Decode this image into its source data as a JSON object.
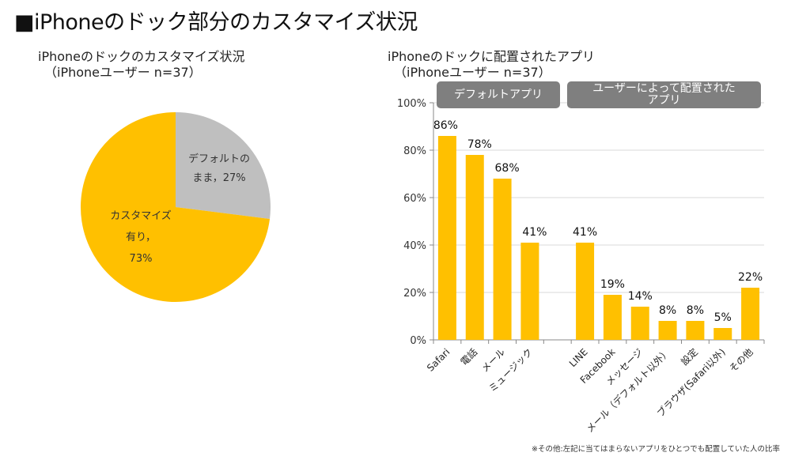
{
  "page": {
    "title": "■iPhoneのドック部分のカスタマイズ状況",
    "footnote": "※その他:左記に当てはまらないアプリをひとつでも配置していた人の比率"
  },
  "colors": {
    "customized": "#ffc000",
    "default": "#bfbfbf",
    "bar": "#ffc000",
    "group_box": "#7f7f7f",
    "gridline": "#d9d9d9"
  },
  "chart_data": [
    {
      "type": "pie",
      "title": "iPhoneのドックのカスタマイズ状況",
      "subtitle": "（iPhoneユーザー n=37）",
      "slices": [
        {
          "label": "デフォルトのまま",
          "value": 27,
          "display": [
            "デフォルトの",
            "まま，27%"
          ],
          "color": "#bfbfbf"
        },
        {
          "label": "カスタマイズ有り",
          "value": 73,
          "display": [
            "カスタマイズ",
            "有り，",
            "73%"
          ],
          "color": "#ffc000"
        }
      ],
      "unit": "%",
      "start": "12 o'clock, clockwise"
    },
    {
      "type": "bar",
      "title": "iPhoneのドックに配置されたアプリ",
      "subtitle": "（iPhoneユーザー n=37）",
      "groups": [
        {
          "label": "デフォルトアプリ",
          "categories": [
            "Safari",
            "電話",
            "メール",
            "ミュージック"
          ]
        },
        {
          "label": "ユーザーによって配置されたアプリ",
          "label_lines": [
            "ユーザーによって配置された",
            "アプリ"
          ],
          "categories": [
            "LINE",
            "Facebook",
            "メッセージ",
            "メール（デフォルト以外）",
            "設定",
            "ブラウザ(Safari以外)",
            "その他"
          ]
        }
      ],
      "categories": [
        "Safari",
        "電話",
        "メール",
        "ミュージック",
        "",
        "LINE",
        "Facebook",
        "メッセージ",
        "メール（デフォルト以外）",
        "設定",
        "ブラウザ(Safari以外)",
        "その他"
      ],
      "values": [
        86,
        78,
        68,
        41,
        null,
        41,
        19,
        14,
        8,
        8,
        5,
        22
      ],
      "data_labels": [
        "86%",
        "78%",
        "68%",
        "41%",
        "",
        "41%",
        "19%",
        "14%",
        "8%",
        "8%",
        "5%",
        "22%"
      ],
      "xlabel": "",
      "ylabel": "",
      "ylim": [
        0,
        100
      ],
      "yticks": [
        0,
        20,
        40,
        60,
        80,
        100
      ],
      "ytick_labels": [
        "0%",
        "20%",
        "40%",
        "60%",
        "80%",
        "100%"
      ],
      "grid": true,
      "legend": "none"
    }
  ]
}
